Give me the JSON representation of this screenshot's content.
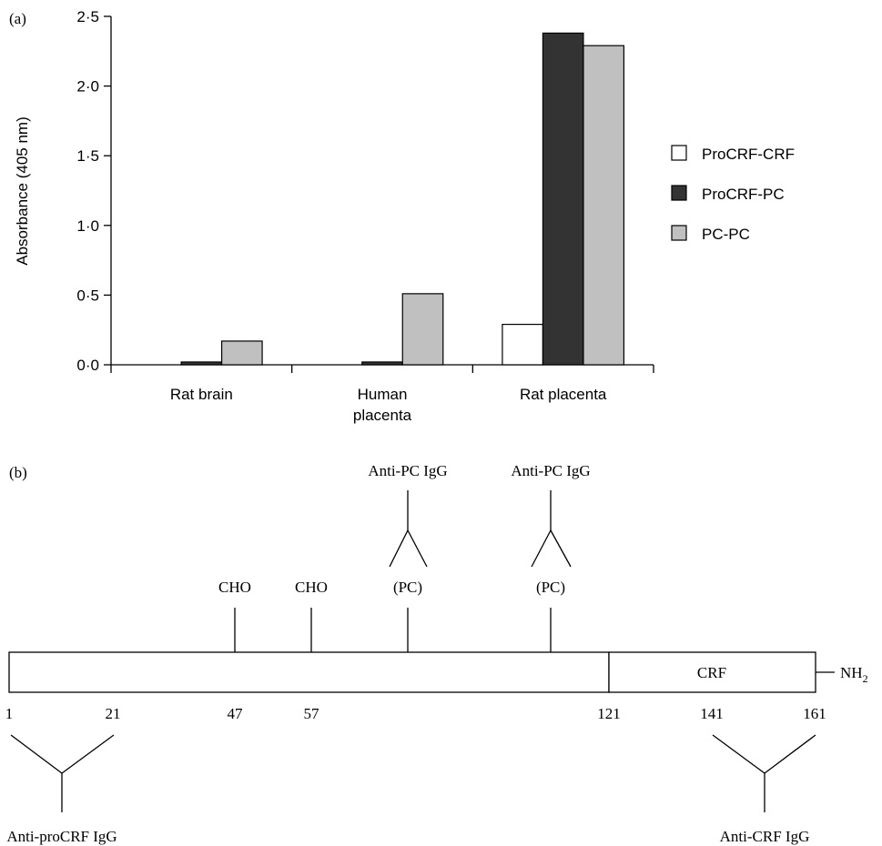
{
  "panel_a": {
    "label": "(a)",
    "legend": [
      {
        "name": "ProCRF-CRF",
        "color": "#ffffff"
      },
      {
        "name": "ProCRF-PC",
        "color": "#333333"
      },
      {
        "name": "PC-PC",
        "color": "#c0c0c0"
      }
    ]
  },
  "chart_data": {
    "type": "bar",
    "title": "",
    "ylabel": "Absorbance (405 nm)",
    "xlabel": "",
    "ylim": [
      0,
      2.5
    ],
    "yticks": [
      0,
      0.5,
      1.0,
      1.5,
      2.0,
      2.5
    ],
    "ytick_labels": [
      "0·0",
      "0·5",
      "1·0",
      "1·5",
      "2·0",
      "2·5"
    ],
    "categories": [
      "Rat brain",
      "Human placenta",
      "Rat placenta"
    ],
    "category_lines": [
      [
        "Rat brain"
      ],
      [
        "Human",
        "placenta"
      ],
      [
        "Rat placenta"
      ]
    ],
    "series": [
      {
        "name": "ProCRF-CRF",
        "values": [
          0.0,
          0.0,
          0.29
        ],
        "color": "#ffffff"
      },
      {
        "name": "ProCRF-PC",
        "values": [
          0.02,
          0.02,
          2.38
        ],
        "color": "#333333"
      },
      {
        "name": "PC-PC",
        "values": [
          0.17,
          0.51,
          2.29
        ],
        "color": "#c0c0c0"
      }
    ],
    "legend_position": "right",
    "grid": false
  },
  "panel_b": {
    "label": "(b)",
    "cho_labels": [
      "CHO",
      "CHO"
    ],
    "pc_sites": [
      {
        "site_label": "(PC)",
        "antibody_label": "Anti-PC IgG"
      },
      {
        "site_label": "(PC)",
        "antibody_label": "Anti-PC IgG"
      }
    ],
    "segment_label": "CRF",
    "terminus_main": "NH",
    "terminus_sub": "2",
    "positions": [
      "1",
      "21",
      "47",
      "57",
      "121",
      "141",
      "161"
    ],
    "anti_procrf_label": "Anti-proCRF IgG",
    "anti_crf_label": "Anti-CRF IgG"
  }
}
